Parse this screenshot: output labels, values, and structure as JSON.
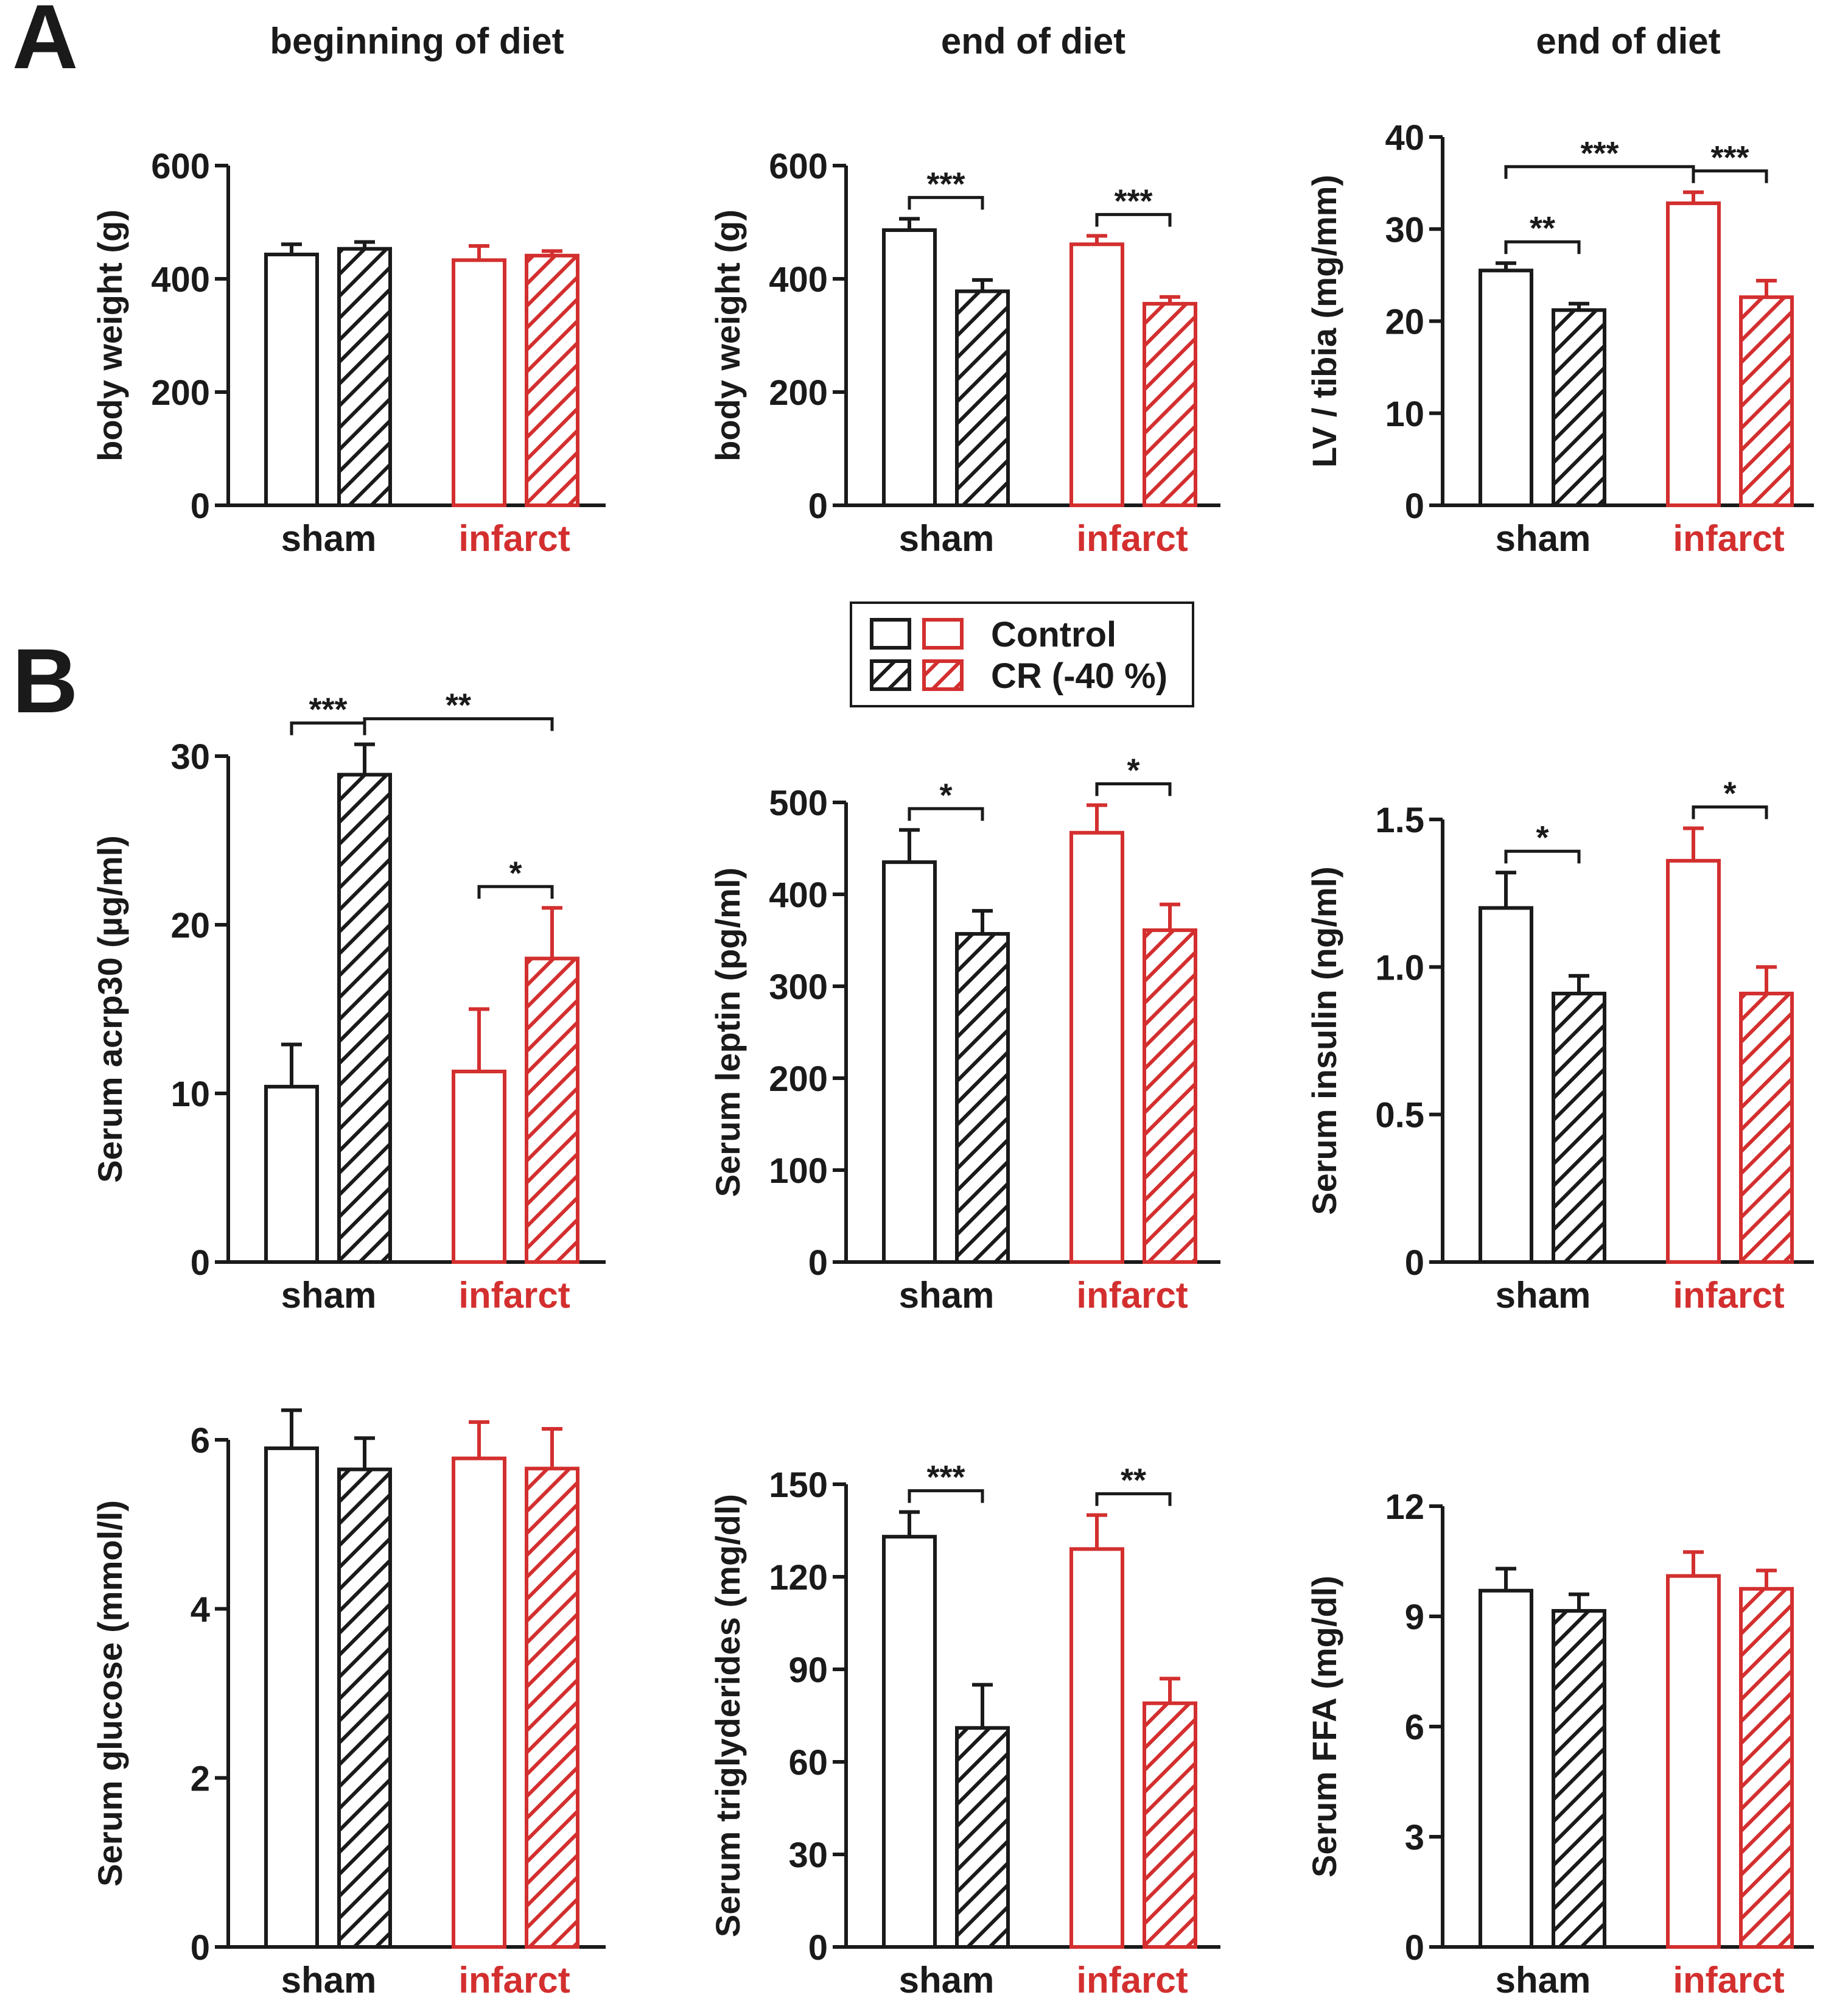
{
  "panels": {
    "a_label": "A",
    "b_label": "B"
  },
  "colors": {
    "control_group": "#1a1a1a",
    "infarct_group": "#d32f2f",
    "axis": "#1a1a1a"
  },
  "legend": {
    "control_label": "Control",
    "cr_label": "CR (-40 %)"
  },
  "chart_data": [
    {
      "type": "bar",
      "panel": "A",
      "title": "beginning of diet",
      "ylabel": "body weight (g)",
      "ylim": [
        0,
        600
      ],
      "yticks": [
        0,
        200,
        400,
        600
      ],
      "ytick_labels": [
        "0",
        "200",
        "400",
        "600"
      ],
      "groups": [
        "sham",
        "infarct"
      ],
      "series": [
        {
          "name": "Control",
          "values": [
            443,
            433
          ],
          "errors": [
            18,
            25
          ]
        },
        {
          "name": "CR (-40 %)",
          "values": [
            453,
            441
          ],
          "errors": [
            12,
            8
          ]
        }
      ],
      "significance": []
    },
    {
      "type": "bar",
      "panel": "A",
      "title": "end of diet",
      "ylabel": "body weight (g)",
      "ylim": [
        0,
        600
      ],
      "yticks": [
        0,
        200,
        400,
        600
      ],
      "ytick_labels": [
        "0",
        "200",
        "400",
        "600"
      ],
      "groups": [
        "sham",
        "infarct"
      ],
      "series": [
        {
          "name": "Control",
          "values": [
            486,
            461
          ],
          "errors": [
            20,
            15
          ]
        },
        {
          "name": "CR (-40 %)",
          "values": [
            378,
            356
          ],
          "errors": [
            20,
            12
          ]
        }
      ],
      "significance": [
        {
          "from": [
            0,
            0
          ],
          "to": [
            0,
            1
          ],
          "label": "***"
        },
        {
          "from": [
            1,
            0
          ],
          "to": [
            1,
            1
          ],
          "label": "***"
        }
      ]
    },
    {
      "type": "bar",
      "panel": "A",
      "title": "end of diet",
      "ylabel": "LV / tibia (mg/mm)",
      "ylim": [
        0,
        40
      ],
      "yticks": [
        0,
        10,
        20,
        30,
        40
      ],
      "ytick_labels": [
        "0",
        "10",
        "20",
        "30",
        "40"
      ],
      "groups": [
        "sham",
        "infarct"
      ],
      "series": [
        {
          "name": "Control",
          "values": [
            25.5,
            32.8
          ],
          "errors": [
            0.8,
            1.2
          ]
        },
        {
          "name": "CR (-40 %)",
          "values": [
            21.2,
            22.6
          ],
          "errors": [
            0.7,
            1.8
          ]
        }
      ],
      "significance": [
        {
          "from": [
            0,
            0
          ],
          "to": [
            0,
            1
          ],
          "label": "**"
        },
        {
          "from": [
            0,
            0
          ],
          "to": [
            1,
            0
          ],
          "label": "***"
        },
        {
          "from": [
            1,
            0
          ],
          "to": [
            1,
            1
          ],
          "label": "***"
        }
      ]
    },
    {
      "type": "bar",
      "panel": "B",
      "title": "",
      "ylabel": "Serum acrp30 (µg/ml)",
      "ylim": [
        0,
        30
      ],
      "yticks": [
        0,
        10,
        20,
        30
      ],
      "ytick_labels": [
        "0",
        "10",
        "20",
        "30"
      ],
      "groups": [
        "sham",
        "infarct"
      ],
      "series": [
        {
          "name": "Control",
          "values": [
            10.4,
            11.3
          ],
          "errors": [
            2.5,
            3.7
          ]
        },
        {
          "name": "CR (-40 %)",
          "values": [
            28.9,
            18.0
          ],
          "errors": [
            1.8,
            3.0
          ]
        }
      ],
      "significance": [
        {
          "from": [
            0,
            0
          ],
          "to": [
            0,
            1
          ],
          "label": "***"
        },
        {
          "from": [
            0,
            1
          ],
          "to": [
            1,
            1
          ],
          "label": "**"
        },
        {
          "from": [
            1,
            0
          ],
          "to": [
            1,
            1
          ],
          "label": "*"
        }
      ]
    },
    {
      "type": "bar",
      "panel": "B",
      "title": "",
      "ylabel": "Serum leptin (pg/ml)",
      "ylim": [
        0,
        500
      ],
      "yticks": [
        0,
        100,
        200,
        300,
        400,
        500
      ],
      "ytick_labels": [
        "0",
        "100",
        "200",
        "300",
        "400",
        "500"
      ],
      "groups": [
        "sham",
        "infarct"
      ],
      "series": [
        {
          "name": "Control",
          "values": [
            435,
            467
          ],
          "errors": [
            35,
            30
          ]
        },
        {
          "name": "CR (-40 %)",
          "values": [
            357,
            361
          ],
          "errors": [
            25,
            28
          ]
        }
      ],
      "significance": [
        {
          "from": [
            0,
            0
          ],
          "to": [
            0,
            1
          ],
          "label": "*"
        },
        {
          "from": [
            1,
            0
          ],
          "to": [
            1,
            1
          ],
          "label": "*"
        }
      ]
    },
    {
      "type": "bar",
      "panel": "B",
      "title": "",
      "ylabel": "Serum insulin (ng/ml)",
      "ylim": [
        0,
        1.5
      ],
      "yticks": [
        0,
        0.5,
        1.0,
        1.5
      ],
      "ytick_labels": [
        "0",
        "0.5",
        "1.0",
        "1.5"
      ],
      "groups": [
        "sham",
        "infarct"
      ],
      "series": [
        {
          "name": "Control",
          "values": [
            1.2,
            1.36
          ],
          "errors": [
            0.12,
            0.11
          ]
        },
        {
          "name": "CR (-40 %)",
          "values": [
            0.91,
            0.91
          ],
          "errors": [
            0.06,
            0.09
          ]
        }
      ],
      "significance": [
        {
          "from": [
            0,
            0
          ],
          "to": [
            0,
            1
          ],
          "label": "*"
        },
        {
          "from": [
            1,
            0
          ],
          "to": [
            1,
            1
          ],
          "label": "*"
        }
      ]
    },
    {
      "type": "bar",
      "panel": "B",
      "title": "",
      "ylabel": "Serum glucose (mmol/l)",
      "ylim": [
        0,
        6
      ],
      "yticks": [
        0,
        2,
        4,
        6
      ],
      "ytick_labels": [
        "0",
        "2",
        "4",
        "6"
      ],
      "groups": [
        "sham",
        "infarct"
      ],
      "series": [
        {
          "name": "Control",
          "values": [
            5.9,
            5.78
          ],
          "errors": [
            0.45,
            0.43
          ]
        },
        {
          "name": "CR (-40 %)",
          "values": [
            5.65,
            5.66
          ],
          "errors": [
            0.37,
            0.47
          ]
        }
      ],
      "significance": []
    },
    {
      "type": "bar",
      "panel": "B",
      "title": "",
      "ylabel": "Serum triglyderides (mg/dl)",
      "ylim": [
        0,
        150
      ],
      "yticks": [
        0,
        30,
        60,
        90,
        120,
        150
      ],
      "ytick_labels": [
        "0",
        "30",
        "60",
        "90",
        "120",
        "150"
      ],
      "groups": [
        "sham",
        "infarct"
      ],
      "series": [
        {
          "name": "Control",
          "values": [
            133,
            129
          ],
          "errors": [
            8,
            11
          ]
        },
        {
          "name": "CR (-40 %)",
          "values": [
            71,
            79
          ],
          "errors": [
            14,
            8
          ]
        }
      ],
      "significance": [
        {
          "from": [
            0,
            0
          ],
          "to": [
            0,
            1
          ],
          "label": "***"
        },
        {
          "from": [
            1,
            0
          ],
          "to": [
            1,
            1
          ],
          "label": "**"
        }
      ]
    },
    {
      "type": "bar",
      "panel": "B",
      "title": "",
      "ylabel": "Serum FFA (mg/dl)",
      "ylim": [
        0,
        12
      ],
      "yticks": [
        0,
        3,
        6,
        9,
        12
      ],
      "ytick_labels": [
        "0",
        "3",
        "6",
        "9",
        "12"
      ],
      "groups": [
        "sham",
        "infarct"
      ],
      "series": [
        {
          "name": "Control",
          "values": [
            9.7,
            10.1
          ],
          "errors": [
            0.6,
            0.65
          ]
        },
        {
          "name": "CR (-40 %)",
          "values": [
            9.15,
            9.75
          ],
          "errors": [
            0.45,
            0.5
          ]
        }
      ],
      "significance": []
    }
  ]
}
